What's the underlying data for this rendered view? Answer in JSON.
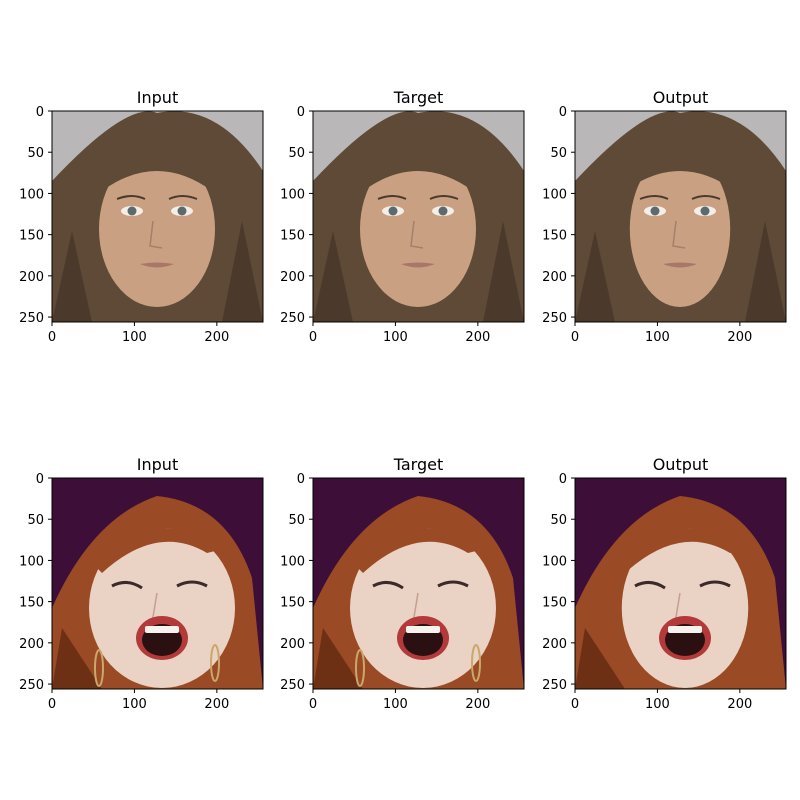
{
  "panels": [
    {
      "title": "Input",
      "subject": "brunette",
      "variant": "sharp"
    },
    {
      "title": "Target",
      "subject": "brunette",
      "variant": "sharp"
    },
    {
      "title": "Output",
      "subject": "brunette",
      "variant": "smooth"
    },
    {
      "title": "Input",
      "subject": "redhead",
      "variant": "sharp"
    },
    {
      "title": "Target",
      "subject": "redhead",
      "variant": "sharp"
    },
    {
      "title": "Output",
      "subject": "redhead",
      "variant": "smooth"
    }
  ],
  "axes": {
    "x_ticks": [
      "0",
      "100",
      "200"
    ],
    "y_ticks": [
      "0",
      "50",
      "100",
      "150",
      "200",
      "250"
    ]
  },
  "colors": {
    "brunette": {
      "background": "#b9b7b8",
      "hair": "#5e4a36",
      "hair_dark": "#3f3124",
      "skin": "#c9a182",
      "lips": "#a9776a",
      "eyes": "#5c6a6e"
    },
    "redhead": {
      "background": "#3d0f38",
      "hair": "#9a4a24",
      "hair_dark": "#5a2510",
      "skin": "#ead2c4",
      "lips": "#b23a3a",
      "mouth": "#2a1010"
    }
  }
}
